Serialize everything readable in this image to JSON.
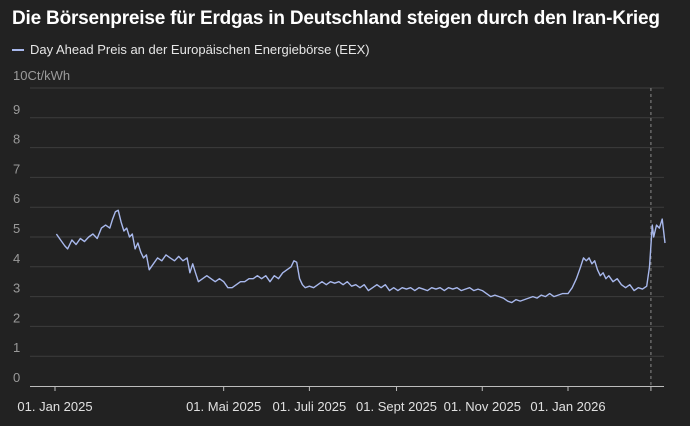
{
  "title": "Die Börsenpreise für Erdgas in Deutschland steigen durch den Iran-Krieg",
  "legend_label": "Day Ahead Preis an der Europäischen Energiebörse (EEX)",
  "unit_label": "10Ct/kWh",
  "colors": {
    "background": "#222222",
    "line": "#a8b8ec",
    "grid": "#3d3d3d",
    "marker": "#8a8a8a"
  },
  "chart_data": {
    "type": "line",
    "title": "Die Börsenpreise für Erdgas in Deutschland steigen durch den Iran-Krieg",
    "ylabel": "Ct/kWh",
    "ylim": [
      0,
      10
    ],
    "yticks": [
      "0",
      "1",
      "2",
      "3",
      "4",
      "5",
      "6",
      "7",
      "8",
      "9",
      "10"
    ],
    "grid": true,
    "legend_position": "top-left",
    "x_ticks": [
      {
        "date": "2025-01-01",
        "label": "01. Jan 2025"
      },
      {
        "date": "2025-05-01",
        "label": "01. Mai 2025"
      },
      {
        "date": "2025-07-01",
        "label": "01. Juli 2025"
      },
      {
        "date": "2025-09-01",
        "label": "01. Sept 2025"
      },
      {
        "date": "2025-11-01",
        "label": "01. Nov 2025"
      },
      {
        "date": "2026-01-01",
        "label": "01. Jan 2026"
      }
    ],
    "xlim": [
      "2025-01-01",
      "2026-03-20"
    ],
    "marker_date": "2026-03-01",
    "series": [
      {
        "name": "Day Ahead Preis an der Europäischen Energiebörse (EEX)",
        "points": [
          [
            "2025-01-02",
            5.1
          ],
          [
            "2025-01-05",
            4.9
          ],
          [
            "2025-01-08",
            4.7
          ],
          [
            "2025-01-10",
            4.6
          ],
          [
            "2025-01-13",
            4.9
          ],
          [
            "2025-01-16",
            4.75
          ],
          [
            "2025-01-19",
            4.95
          ],
          [
            "2025-01-22",
            4.85
          ],
          [
            "2025-01-25",
            5.0
          ],
          [
            "2025-01-28",
            5.1
          ],
          [
            "2025-01-31",
            4.95
          ],
          [
            "2025-02-03",
            5.3
          ],
          [
            "2025-02-06",
            5.4
          ],
          [
            "2025-02-09",
            5.3
          ],
          [
            "2025-02-11",
            5.6
          ],
          [
            "2025-02-13",
            5.85
          ],
          [
            "2025-02-15",
            5.9
          ],
          [
            "2025-02-17",
            5.5
          ],
          [
            "2025-02-19",
            5.2
          ],
          [
            "2025-02-21",
            5.3
          ],
          [
            "2025-02-23",
            5.0
          ],
          [
            "2025-02-25",
            5.1
          ],
          [
            "2025-02-27",
            4.6
          ],
          [
            "2025-03-01",
            4.8
          ],
          [
            "2025-03-03",
            4.5
          ],
          [
            "2025-03-05",
            4.3
          ],
          [
            "2025-03-07",
            4.4
          ],
          [
            "2025-03-09",
            3.9
          ],
          [
            "2025-03-12",
            4.1
          ],
          [
            "2025-03-15",
            4.3
          ],
          [
            "2025-03-18",
            4.2
          ],
          [
            "2025-03-21",
            4.4
          ],
          [
            "2025-03-24",
            4.3
          ],
          [
            "2025-03-27",
            4.2
          ],
          [
            "2025-03-30",
            4.35
          ],
          [
            "2025-04-02",
            4.2
          ],
          [
            "2025-04-05",
            4.3
          ],
          [
            "2025-04-07",
            3.8
          ],
          [
            "2025-04-09",
            4.1
          ],
          [
            "2025-04-11",
            3.8
          ],
          [
            "2025-04-13",
            3.5
          ],
          [
            "2025-04-16",
            3.6
          ],
          [
            "2025-04-19",
            3.7
          ],
          [
            "2025-04-22",
            3.6
          ],
          [
            "2025-04-25",
            3.5
          ],
          [
            "2025-04-28",
            3.6
          ],
          [
            "2025-05-01",
            3.5
          ],
          [
            "2025-05-04",
            3.3
          ],
          [
            "2025-05-07",
            3.3
          ],
          [
            "2025-05-10",
            3.4
          ],
          [
            "2025-05-13",
            3.5
          ],
          [
            "2025-05-16",
            3.5
          ],
          [
            "2025-05-19",
            3.6
          ],
          [
            "2025-05-22",
            3.6
          ],
          [
            "2025-05-25",
            3.7
          ],
          [
            "2025-05-28",
            3.6
          ],
          [
            "2025-05-31",
            3.7
          ],
          [
            "2025-06-03",
            3.5
          ],
          [
            "2025-06-06",
            3.7
          ],
          [
            "2025-06-09",
            3.6
          ],
          [
            "2025-06-12",
            3.8
          ],
          [
            "2025-06-15",
            3.9
          ],
          [
            "2025-06-18",
            4.0
          ],
          [
            "2025-06-20",
            4.2
          ],
          [
            "2025-06-22",
            4.15
          ],
          [
            "2025-06-24",
            3.6
          ],
          [
            "2025-06-26",
            3.4
          ],
          [
            "2025-06-28",
            3.3
          ],
          [
            "2025-07-01",
            3.35
          ],
          [
            "2025-07-04",
            3.3
          ],
          [
            "2025-07-07",
            3.4
          ],
          [
            "2025-07-10",
            3.5
          ],
          [
            "2025-07-13",
            3.4
          ],
          [
            "2025-07-16",
            3.5
          ],
          [
            "2025-07-19",
            3.45
          ],
          [
            "2025-07-22",
            3.5
          ],
          [
            "2025-07-25",
            3.4
          ],
          [
            "2025-07-28",
            3.5
          ],
          [
            "2025-07-31",
            3.35
          ],
          [
            "2025-08-03",
            3.4
          ],
          [
            "2025-08-06",
            3.3
          ],
          [
            "2025-08-09",
            3.4
          ],
          [
            "2025-08-12",
            3.2
          ],
          [
            "2025-08-15",
            3.3
          ],
          [
            "2025-08-18",
            3.4
          ],
          [
            "2025-08-21",
            3.3
          ],
          [
            "2025-08-24",
            3.4
          ],
          [
            "2025-08-27",
            3.2
          ],
          [
            "2025-08-30",
            3.3
          ],
          [
            "2025-09-02",
            3.2
          ],
          [
            "2025-09-05",
            3.3
          ],
          [
            "2025-09-08",
            3.25
          ],
          [
            "2025-09-11",
            3.3
          ],
          [
            "2025-09-14",
            3.2
          ],
          [
            "2025-09-17",
            3.3
          ],
          [
            "2025-09-20",
            3.25
          ],
          [
            "2025-09-23",
            3.2
          ],
          [
            "2025-09-26",
            3.3
          ],
          [
            "2025-09-29",
            3.25
          ],
          [
            "2025-10-02",
            3.3
          ],
          [
            "2025-10-05",
            3.2
          ],
          [
            "2025-10-08",
            3.3
          ],
          [
            "2025-10-11",
            3.25
          ],
          [
            "2025-10-14",
            3.3
          ],
          [
            "2025-10-17",
            3.2
          ],
          [
            "2025-10-20",
            3.25
          ],
          [
            "2025-10-23",
            3.3
          ],
          [
            "2025-10-26",
            3.2
          ],
          [
            "2025-10-29",
            3.25
          ],
          [
            "2025-11-01",
            3.2
          ],
          [
            "2025-11-04",
            3.1
          ],
          [
            "2025-11-07",
            3.0
          ],
          [
            "2025-11-10",
            3.05
          ],
          [
            "2025-11-13",
            3.0
          ],
          [
            "2025-11-16",
            2.95
          ],
          [
            "2025-11-19",
            2.85
          ],
          [
            "2025-11-22",
            2.8
          ],
          [
            "2025-11-25",
            2.9
          ],
          [
            "2025-11-28",
            2.85
          ],
          [
            "2025-12-01",
            2.9
          ],
          [
            "2025-12-04",
            2.95
          ],
          [
            "2025-12-07",
            3.0
          ],
          [
            "2025-12-10",
            2.95
          ],
          [
            "2025-12-13",
            3.05
          ],
          [
            "2025-12-16",
            3.0
          ],
          [
            "2025-12-19",
            3.1
          ],
          [
            "2025-12-22",
            3.0
          ],
          [
            "2025-12-25",
            3.05
          ],
          [
            "2025-12-28",
            3.1
          ],
          [
            "2026-01-01",
            3.1
          ],
          [
            "2026-01-04",
            3.3
          ],
          [
            "2026-01-07",
            3.6
          ],
          [
            "2026-01-10",
            4.0
          ],
          [
            "2026-01-12",
            4.3
          ],
          [
            "2026-01-14",
            4.2
          ],
          [
            "2026-01-16",
            4.3
          ],
          [
            "2026-01-18",
            4.1
          ],
          [
            "2026-01-20",
            4.2
          ],
          [
            "2026-01-22",
            3.9
          ],
          [
            "2026-01-24",
            3.7
          ],
          [
            "2026-01-26",
            3.8
          ],
          [
            "2026-01-28",
            3.6
          ],
          [
            "2026-01-30",
            3.7
          ],
          [
            "2026-02-02",
            3.5
          ],
          [
            "2026-02-05",
            3.6
          ],
          [
            "2026-02-08",
            3.4
          ],
          [
            "2026-02-11",
            3.3
          ],
          [
            "2026-02-14",
            3.4
          ],
          [
            "2026-02-17",
            3.2
          ],
          [
            "2026-02-20",
            3.3
          ],
          [
            "2026-02-23",
            3.25
          ],
          [
            "2026-02-26",
            3.35
          ],
          [
            "2026-02-28",
            4.0
          ],
          [
            "2026-03-02",
            5.4
          ],
          [
            "2026-03-03",
            5.0
          ],
          [
            "2026-03-05",
            5.4
          ],
          [
            "2026-03-07",
            5.3
          ],
          [
            "2026-03-09",
            5.6
          ],
          [
            "2026-03-10",
            5.2
          ],
          [
            "2026-03-11",
            4.8
          ]
        ]
      }
    ]
  }
}
